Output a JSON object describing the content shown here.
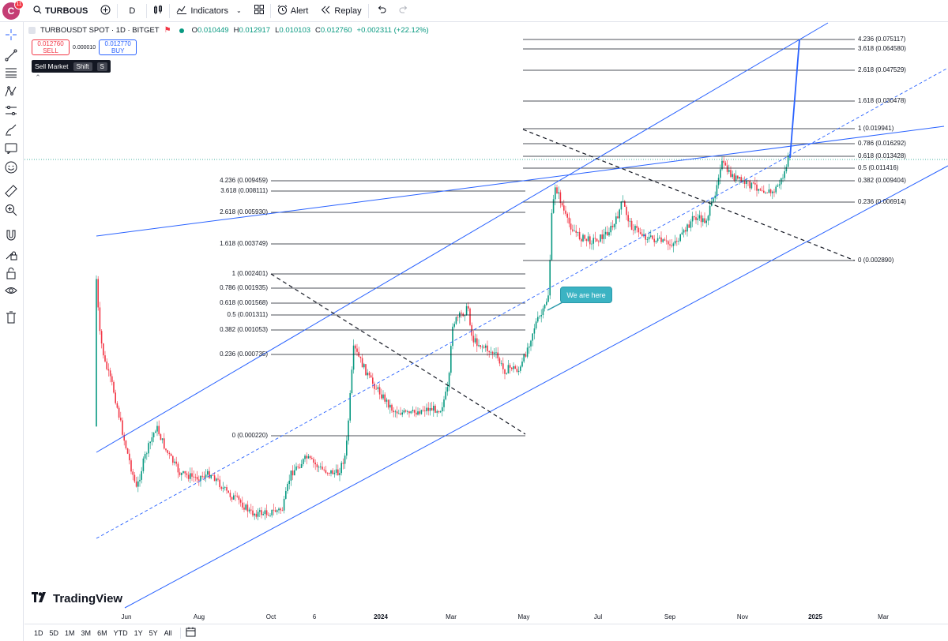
{
  "toolbar": {
    "avatar_letter": "C",
    "notification_count": "11",
    "symbol": "TURBOUS",
    "interval": "D",
    "indicators_label": "Indicators",
    "alert_label": "Alert",
    "replay_label": "Replay"
  },
  "legend": {
    "title": "TURBOUSDT SPOT · 1D · BITGET",
    "o_label": "O",
    "o_value": "0.010449",
    "h_label": "H",
    "h_value": "0.012917",
    "l_label": "L",
    "l_value": "0.010103",
    "c_label": "C",
    "c_value": "0.012760",
    "change": "+0.002311 (+22.12%)"
  },
  "trade": {
    "sell_price": "0.012760",
    "sell_label": "SELL",
    "spread": "0.000010",
    "buy_price": "0.012770",
    "buy_label": "BUY"
  },
  "tooltip": {
    "label": "Sell Market",
    "key1": "Shift",
    "key2": "S"
  },
  "annotation": {
    "callout_text": "We are here"
  },
  "branding": {
    "logo_text": "TradingView"
  },
  "fib_left": [
    "4.236 (0.009459)",
    "3.618 (0.008111)",
    "2.618 (0.005930)",
    "1.618 (0.003749)",
    "1 (0.002401)",
    "0.786 (0.001935)",
    "0.618 (0.001568)",
    "0.5 (0.001311)",
    "0.382 (0.001053)",
    "0.236 (0.000735)",
    "0 (0.000220)"
  ],
  "fib_right": [
    "4.236 (0.075117)",
    "3.618 (0.064580)",
    "2.618 (0.047529)",
    "1.618 (0.030478)",
    "1 (0.019941)",
    "0.786 (0.016292)",
    "0.618 (0.013428)",
    "0.5 (0.011416)",
    "0.382 (0.009404)",
    "0.236 (0.006914)",
    "0 (0.002890)"
  ],
  "time_axis": [
    "Jun",
    "Aug",
    "Oct",
    "6",
    "2024",
    "Mar",
    "May",
    "Jul",
    "Sep",
    "Nov",
    "2025",
    "Mar"
  ],
  "ranges": [
    "1D",
    "5D",
    "1M",
    "3M",
    "6M",
    "YTD",
    "1Y",
    "5Y",
    "All"
  ],
  "colors": {
    "up": "#089981",
    "down": "#f23645",
    "trendline": "#2962ff",
    "fib": "#131722",
    "callout": "#3bb3c3"
  },
  "left_tools": [
    "crosshair-icon",
    "trendline-icon",
    "fib-icon",
    "pattern-icon",
    "prediction-icon",
    "brush-icon",
    "text-icon",
    "emoji-icon",
    "ruler-icon",
    "zoom-icon",
    "magnet-icon",
    "lock-drawing-icon",
    "lock-icon",
    "eye-icon",
    "trash-icon"
  ]
}
